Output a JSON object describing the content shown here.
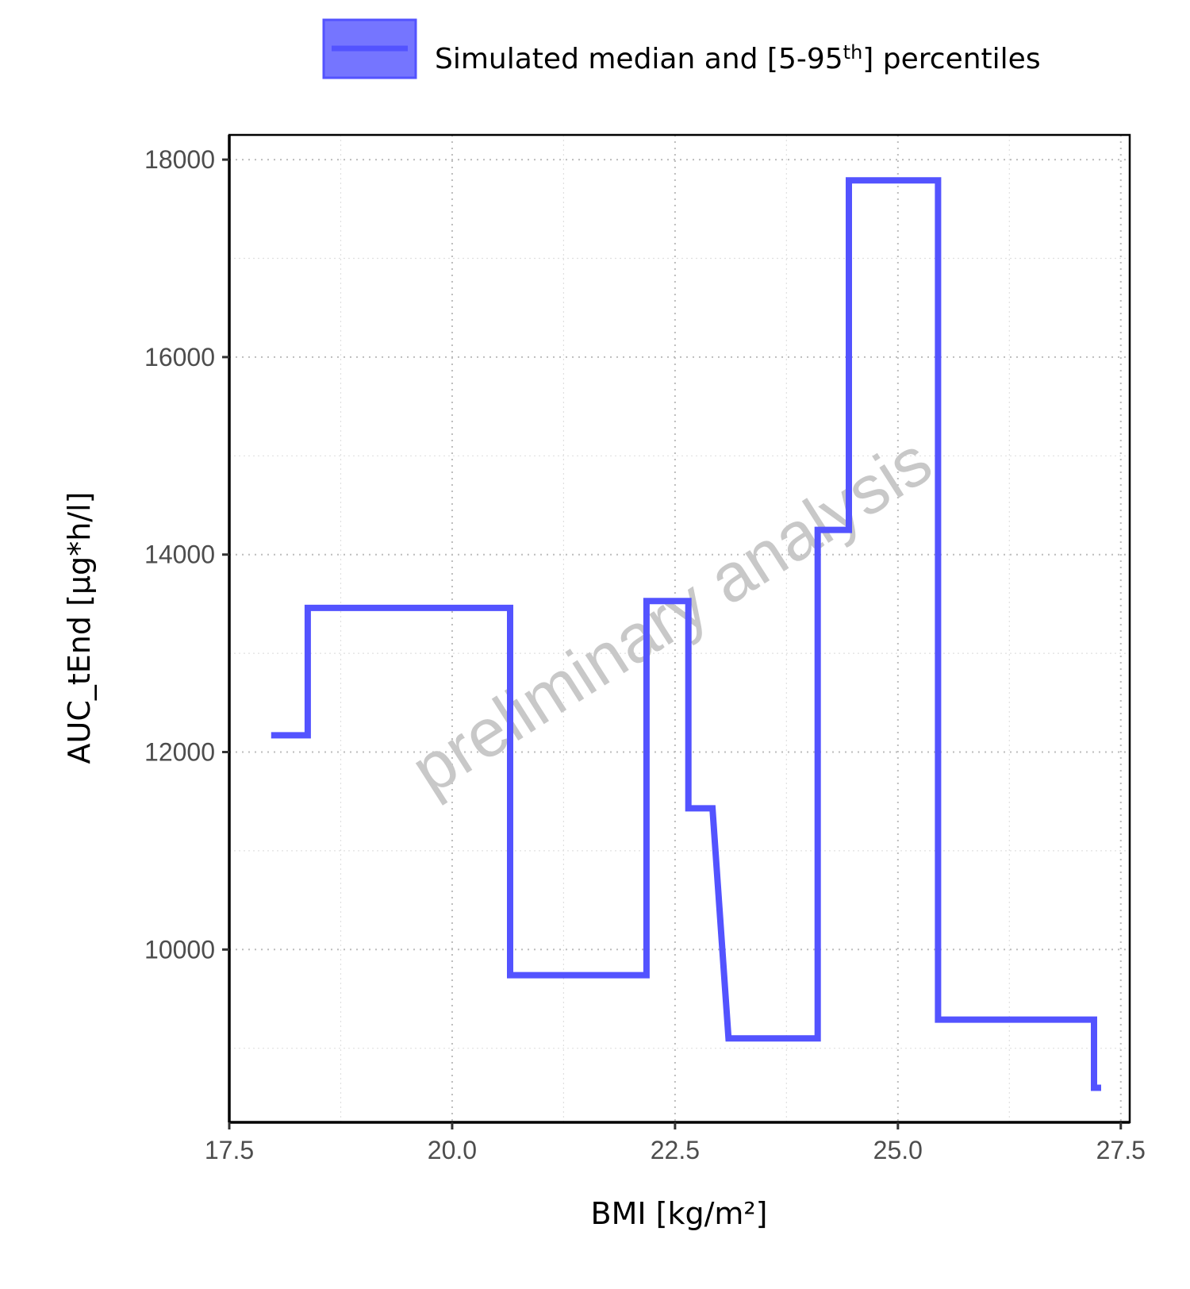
{
  "legend": {
    "label_main": "Simulated median and [5-95",
    "label_sup": "th",
    "label_end": "] percentiles",
    "color": "#5353ff"
  },
  "watermark": "preliminary analysis",
  "chart_data": {
    "type": "line",
    "line_shape": "step",
    "xlabel": "BMI [kg/m²]",
    "ylabel": "AUC_tEnd [µg*h/l]",
    "xlim": [
      17.5,
      27.6
    ],
    "ylim": [
      8250,
      18250
    ],
    "x_ticks": [
      17.5,
      20.0,
      22.5,
      25.0,
      27.5
    ],
    "x_tick_labels": [
      "17.5",
      "20.0",
      "22.5",
      "25.0",
      "27.5"
    ],
    "y_ticks": [
      10000,
      12000,
      14000,
      16000,
      18000
    ],
    "y_tick_labels": [
      "10000",
      "12000",
      "14000",
      "16000",
      "18000"
    ],
    "y_minor_ticks": [
      9000,
      11000,
      13000,
      15000,
      17000
    ],
    "x_minor_ticks": [
      18.75,
      21.25,
      23.75,
      26.25
    ],
    "grid": true,
    "legend_position": "top",
    "series": [
      {
        "name": "Simulated median and [5-95th] percentiles",
        "color": "#5353ff",
        "points": [
          [
            17.97,
            12170
          ],
          [
            18.38,
            12170
          ],
          [
            18.38,
            13460
          ],
          [
            20.65,
            13460
          ],
          [
            20.65,
            9740
          ],
          [
            22.18,
            9740
          ],
          [
            22.18,
            13530
          ],
          [
            22.65,
            13530
          ],
          [
            22.65,
            11430
          ],
          [
            22.92,
            11430
          ],
          [
            23.1,
            9100
          ],
          [
            24.1,
            9100
          ],
          [
            24.1,
            14250
          ],
          [
            24.45,
            14250
          ],
          [
            24.45,
            17790
          ],
          [
            25.45,
            17790
          ],
          [
            25.45,
            9290
          ],
          [
            27.2,
            9290
          ],
          [
            27.2,
            8600
          ],
          [
            27.28,
            8600
          ]
        ]
      }
    ]
  }
}
